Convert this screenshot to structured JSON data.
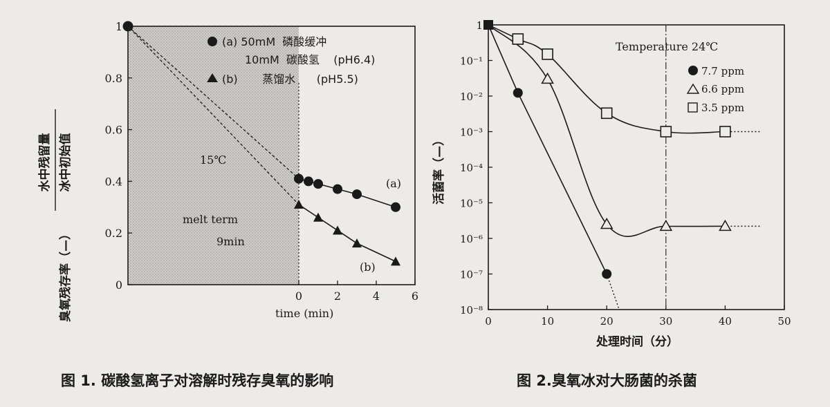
{
  "chart_data": [
    {
      "type": "line",
      "caption": "图 1. 碳酸氢离子对溶解时残存臭氧的影响",
      "ylabel_numerator": "水中残留量",
      "ylabel_denominator": "冰中初始值",
      "ylabel_prefix": "臭氧残存率（—）",
      "xlabel": "time (min)",
      "xlim": [
        0,
        6
      ],
      "ylim": [
        0,
        1
      ],
      "x_ticks": [
        "0",
        "2",
        "4",
        "6"
      ],
      "y_ticks": [
        "0",
        "0.2",
        "0.4",
        "0.6",
        "0.8",
        "1"
      ],
      "y_tick_values": [
        0,
        0.2,
        0.4,
        0.6,
        0.8,
        1
      ],
      "legend": [
        {
          "marker": "circle",
          "line1": "(a) 50mM  磷酸缓冲",
          "line2": "10mM  碳酸氢    (pH6.4)"
        },
        {
          "marker": "triangle",
          "line1": "(b)       蒸馏水      (pH5.5)"
        }
      ],
      "annotations": {
        "temp": "15℃",
        "melt1": "melt term",
        "melt2": "9min",
        "label_a": "(a)",
        "label_b": "(b)"
      },
      "melt_start": 1.0,
      "melt_end_y_a": 0.41,
      "melt_end_y_b": 0.31,
      "series": [
        {
          "name": "(a)",
          "marker": "circle",
          "x": [
            0,
            0.5,
            1,
            2,
            3,
            5
          ],
          "y": [
            0.41,
            0.4,
            0.39,
            0.37,
            0.35,
            0.3
          ]
        },
        {
          "name": "(b)",
          "marker": "triangle",
          "x": [
            0,
            1,
            2,
            3,
            5
          ],
          "y": [
            0.31,
            0.26,
            0.21,
            0.16,
            0.09
          ]
        }
      ]
    },
    {
      "type": "line",
      "caption": "图 2.臭氧冰对大肠菌的杀菌",
      "ylabel": "活菌率（—）",
      "xlabel": "处理时间（分）",
      "xlim": [
        0,
        50
      ],
      "ylim_exponent": [
        -8,
        0
      ],
      "y_scale": "log",
      "x_ticks": [
        0,
        10,
        20,
        30,
        40,
        50
      ],
      "y_tick_labels": [
        "1",
        "10⁻¹",
        "10⁻²",
        "10⁻³",
        "10⁻⁴",
        "10⁻⁵",
        "10⁻⁶",
        "10⁻⁷",
        "10⁻⁸"
      ],
      "annotation": "Temperature 24℃",
      "vline_x": 30,
      "legend": [
        {
          "marker": "circle",
          "label": "7.7 ppm"
        },
        {
          "marker": "triangle",
          "label": "6.6 ppm"
        },
        {
          "marker": "square",
          "label": "3.5 ppm"
        }
      ],
      "series": [
        {
          "name": "7.7 ppm",
          "marker": "circle",
          "x": [
            0,
            5,
            20
          ],
          "y": [
            1,
            0.0123,
            1e-07
          ]
        },
        {
          "name": "6.6 ppm",
          "marker": "triangle",
          "x": [
            0,
            10,
            20,
            30,
            40
          ],
          "y": [
            1,
            0.03,
            2.5e-06,
            2.2e-06,
            2.2e-06
          ]
        },
        {
          "name": "3.5 ppm",
          "marker": "square",
          "x": [
            0,
            5,
            10,
            20,
            30,
            40
          ],
          "y": [
            1,
            0.4,
            0.15,
            0.0033,
            0.001,
            0.001
          ]
        }
      ]
    }
  ]
}
